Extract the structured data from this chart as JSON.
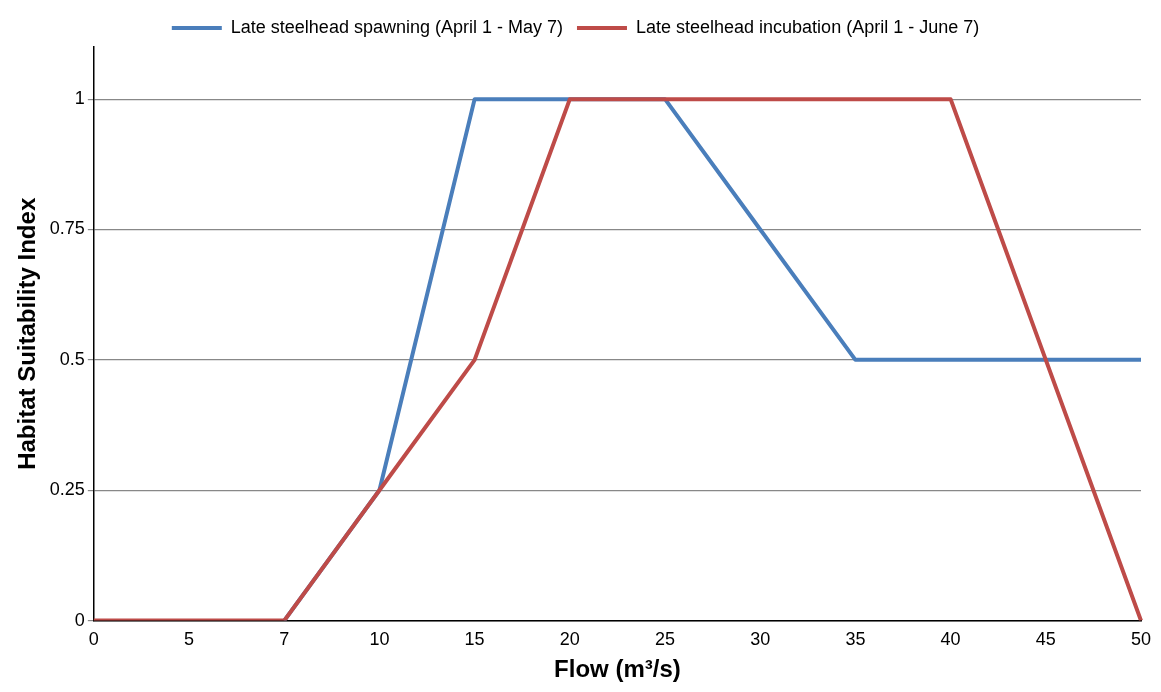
{
  "chart_data": {
    "type": "line",
    "xlabel": "Flow (m³/s)",
    "ylabel": "Habitat Suitability Index",
    "categories": [
      "0",
      "5",
      "7",
      "10",
      "15",
      "20",
      "25",
      "30",
      "35",
      "40",
      "45",
      "50"
    ],
    "series": [
      {
        "name": "Late steelhead spawning (April 1 - May 7)",
        "color": "#4a7ebb",
        "values": [
          null,
          null,
          0,
          0.25,
          1,
          1,
          1,
          0.75,
          0.5,
          0.5,
          0.5,
          0.5
        ]
      },
      {
        "name": "Late steelhead incubation (April 1 - June 7)",
        "color": "#be4b48",
        "values": [
          0,
          0,
          0,
          0.25,
          0.5,
          1,
          1,
          1,
          1,
          1,
          0.5,
          0
        ]
      }
    ],
    "ylim": [
      0,
      1.1
    ],
    "yticks": [
      0,
      0.25,
      0.5,
      0.75,
      1
    ],
    "grid": "y",
    "legend": "top",
    "marker": "none",
    "line_style": "solid"
  }
}
